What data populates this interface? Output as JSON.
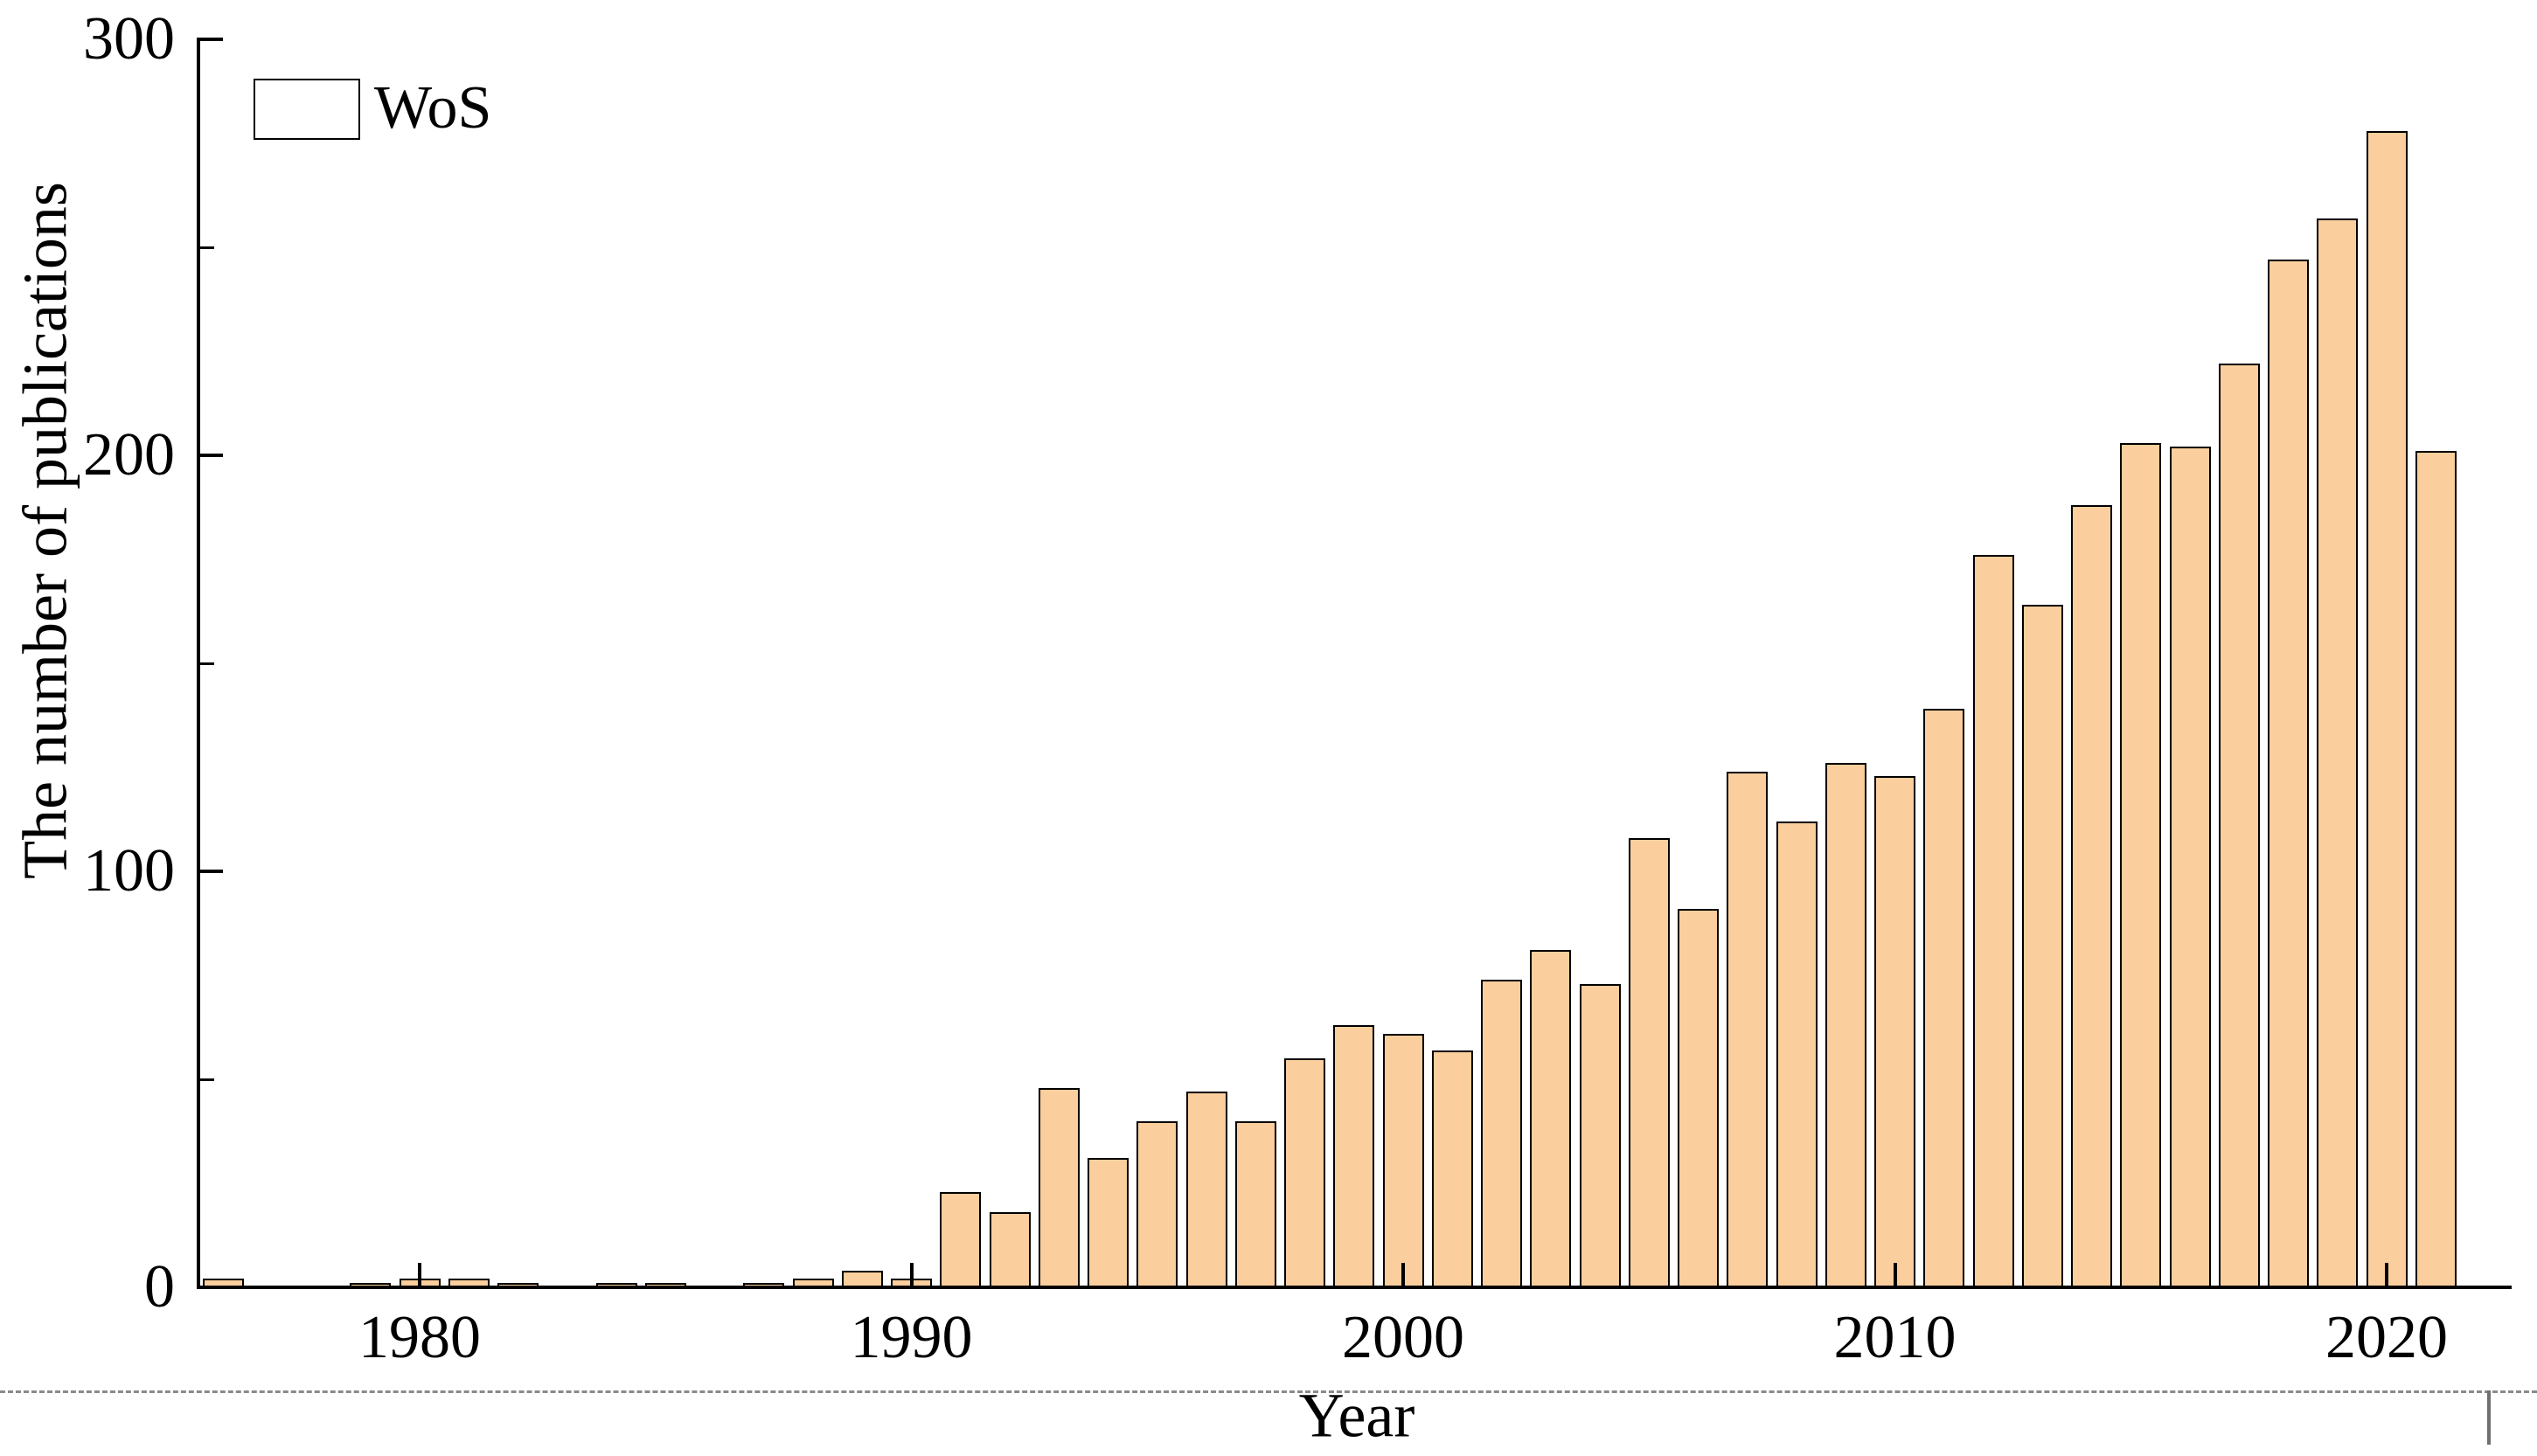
{
  "chart_data": {
    "type": "bar",
    "title": "",
    "xlabel": "Year",
    "ylabel": "The number of publications",
    "legend": [
      "WoS"
    ],
    "legend_position": "upper-left",
    "legend_frame": false,
    "bar_color": "#FBCE9D",
    "bar_edge_color": "#000000",
    "grid": false,
    "xlim": [
      1975.5,
      2022.5
    ],
    "ylim": [
      0,
      300
    ],
    "yticks_major": [
      0,
      100,
      200,
      300
    ],
    "yticks_minor": [
      50,
      150,
      250
    ],
    "xticks_major": [
      1980,
      1990,
      2000,
      2010,
      2020
    ],
    "x": [
      1976,
      1977,
      1978,
      1979,
      1980,
      1981,
      1982,
      1983,
      1984,
      1985,
      1986,
      1987,
      1988,
      1989,
      1990,
      1991,
      1992,
      1993,
      1994,
      1995,
      1996,
      1997,
      1998,
      1999,
      2000,
      2001,
      2002,
      2003,
      2004,
      2005,
      2006,
      2007,
      2008,
      2009,
      2010,
      2011,
      2012,
      2013,
      2014,
      2015,
      2016,
      2017,
      2018,
      2019,
      2020,
      2021
    ],
    "values": [
      2,
      0,
      0,
      1,
      2,
      2,
      1,
      0,
      1,
      1,
      0,
      1,
      2,
      4,
      2,
      23,
      18,
      48,
      31,
      40,
      47,
      40,
      55,
      63,
      61,
      57,
      74,
      81,
      73,
      108,
      91,
      124,
      112,
      126,
      123,
      139,
      176,
      164,
      188,
      203,
      202,
      222,
      247,
      257,
      278,
      201
    ]
  }
}
